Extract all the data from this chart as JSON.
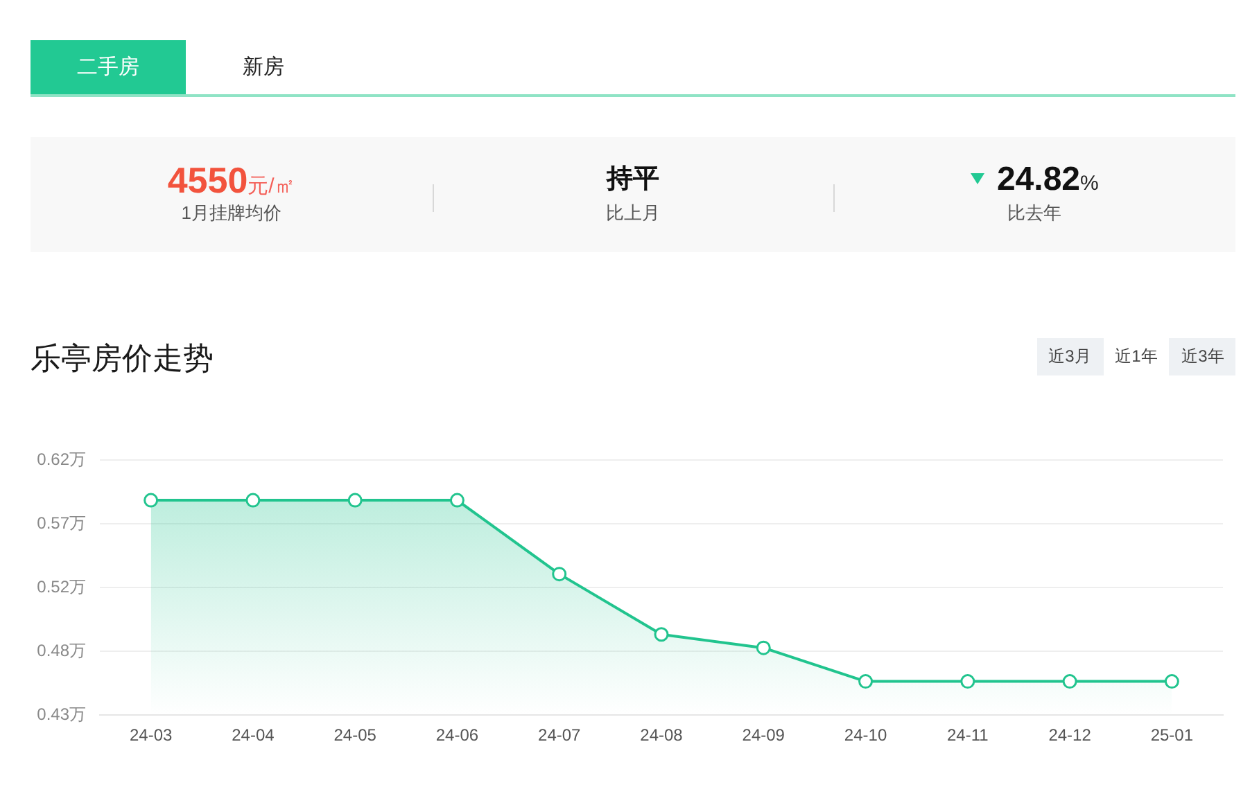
{
  "chart_data": {
    "type": "area",
    "title": "乐亭房价走势",
    "categories": [
      "24-03",
      "24-04",
      "24-05",
      "24-06",
      "24-07",
      "24-08",
      "24-09",
      "24-10",
      "24-11",
      "24-12",
      "25-01"
    ],
    "series": [
      {
        "color": "#21c48e",
        "values": [
          0.59,
          0.59,
          0.59,
          0.59,
          0.535,
          0.49,
          0.48,
          0.455,
          0.455,
          0.455,
          0.455
        ]
      }
    ],
    "ylim": [
      0.43,
      0.62
    ],
    "yticks": [
      {
        "value": 0.43,
        "label": "0.43万"
      },
      {
        "value": 0.4775,
        "label": "0.48万"
      },
      {
        "value": 0.525,
        "label": "0.52万"
      },
      {
        "value": 0.5725,
        "label": "0.57万"
      },
      {
        "value": 0.62,
        "label": "0.62万"
      }
    ],
    "grid": "y",
    "marker": "circle",
    "line_style": "solid",
    "annotations": [
      "二手房",
      "新房",
      "4550元/㎡",
      "1月挂牌均价",
      "持平",
      "比上月",
      "24.82%",
      "比去年",
      "近3月",
      "近1年",
      "近3年"
    ]
  }
}
